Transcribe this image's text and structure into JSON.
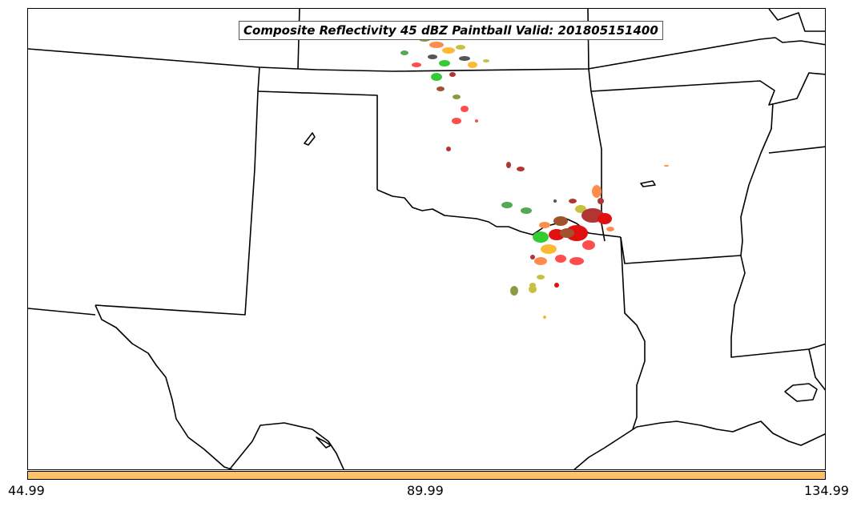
{
  "map": {
    "title": "Composite Reflectivity 45 dBZ Paintball Valid: 201805151400",
    "colors": {
      "state_lines": "#000000",
      "colorbar_fill": "#ffc266",
      "paintball_members": [
        "#ff4d4d",
        "#e01010",
        "#b23535",
        "#ff8c4d",
        "#ffb833",
        "#c8c040",
        "#8c9a40",
        "#33cc33",
        "#55a855",
        "#555555",
        "#a0522d"
      ]
    },
    "paintball_clusters": [
      "northern-oklahoma-kansas-border",
      "south-central-oklahoma-red-river"
    ]
  },
  "colorbar": {
    "ticks": [
      "44.99",
      "89.99",
      "134.99"
    ]
  }
}
